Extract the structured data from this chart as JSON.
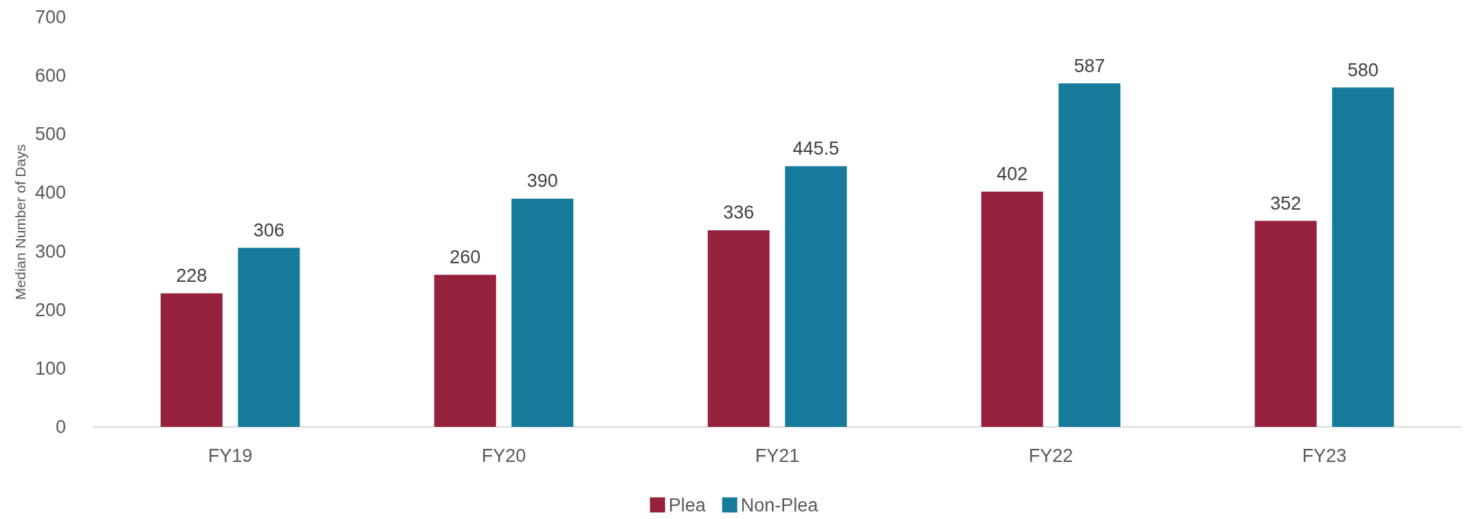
{
  "chart_data": {
    "type": "bar",
    "ylabel": "Median Number of Days",
    "categories": [
      "FY19",
      "FY20",
      "FY21",
      "FY22",
      "FY23"
    ],
    "series": [
      {
        "name": "Plea",
        "color": "#95223c",
        "values": [
          228,
          260,
          336,
          402,
          352
        ]
      },
      {
        "name": "Non-Plea",
        "color": "#167b9b",
        "values": [
          306,
          390,
          445.5,
          587,
          580
        ]
      }
    ],
    "ylim": [
      0,
      700
    ],
    "yticks": [
      0,
      100,
      200,
      300,
      400,
      500,
      600,
      700
    ],
    "grid": false,
    "legend": "bottom",
    "data_labels": true
  }
}
